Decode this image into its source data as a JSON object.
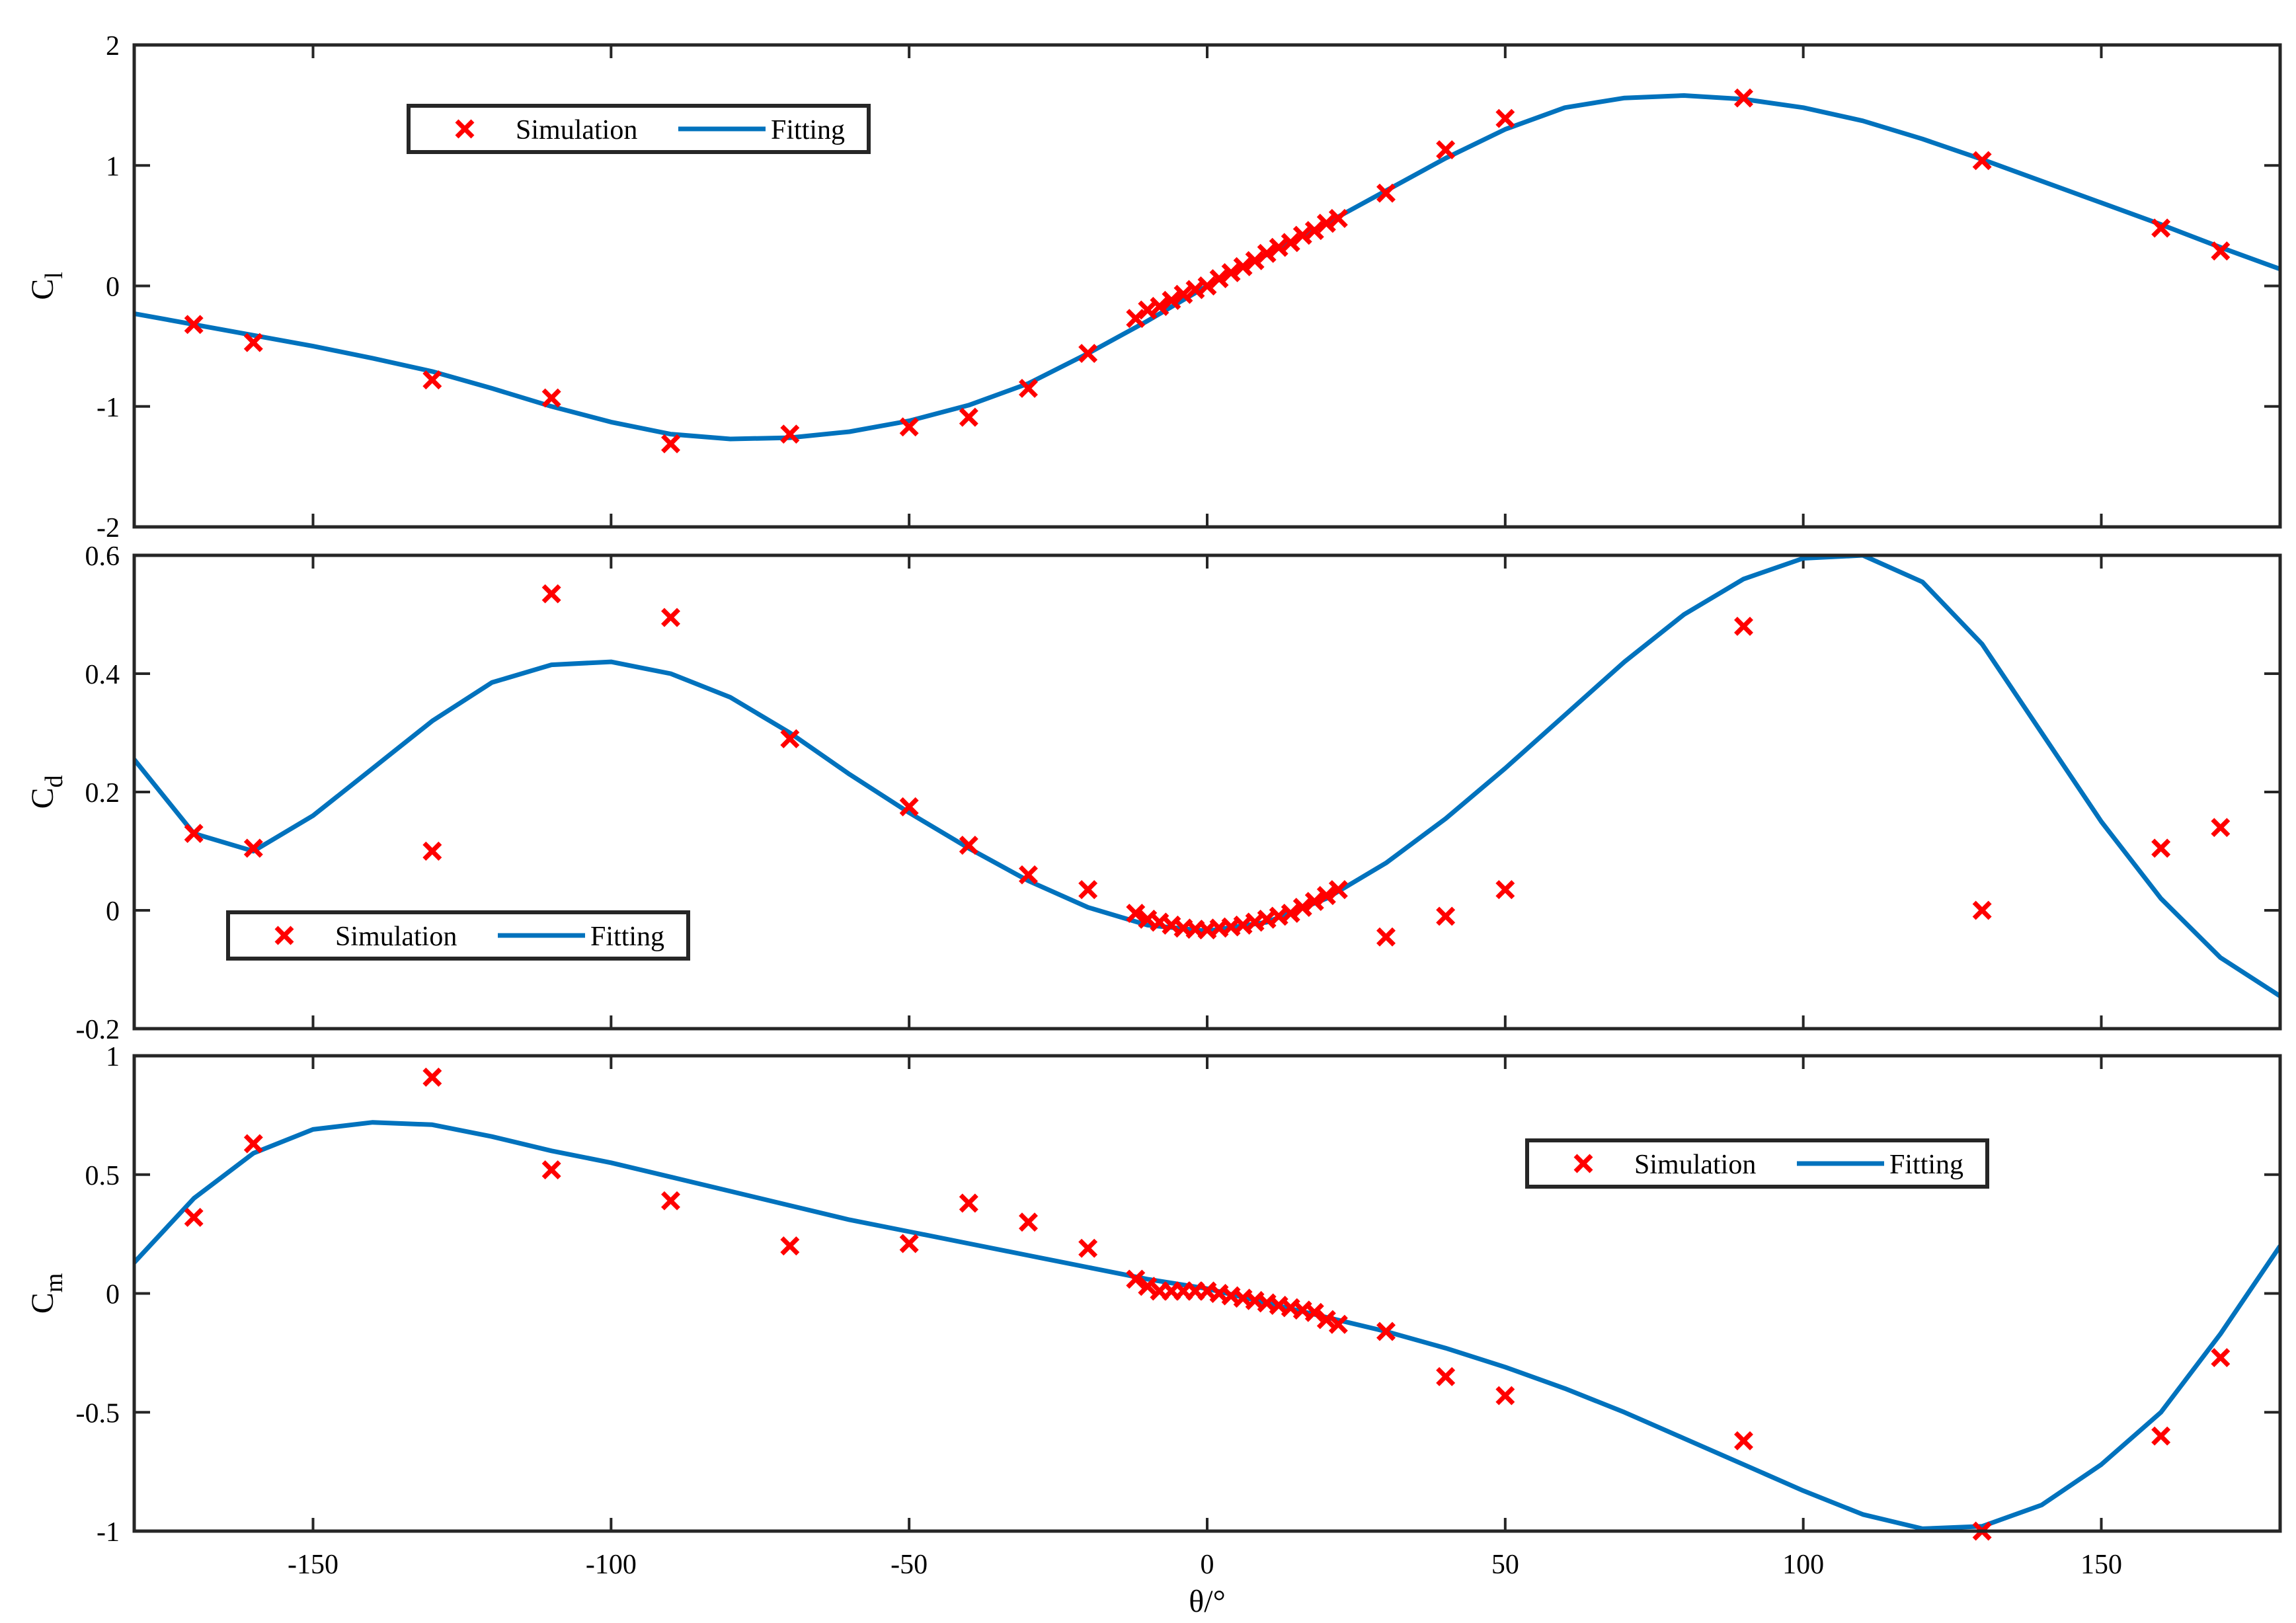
{
  "figure": {
    "xlabel": "θ/°",
    "marker_color": "#ff0000",
    "line_color": "#0072bd",
    "axis_color": "#262626"
  },
  "chart_data": [
    {
      "type": "line",
      "name": "lift",
      "ylabel_main": "C",
      "ylabel_sub": "l",
      "xlim": [
        -180,
        180
      ],
      "ylim": [
        -2,
        2
      ],
      "xticks": [
        -150,
        -100,
        -50,
        0,
        50,
        100,
        150
      ],
      "yticks": [
        -2,
        -1,
        0,
        1,
        2
      ],
      "legend": {
        "position": "top-left",
        "entries": [
          "Simulation",
          "Fitting"
        ]
      },
      "series": [
        {
          "name": "Simulation",
          "kind": "scatter",
          "x": [
            -170,
            -160,
            -130,
            -110,
            -90,
            -70,
            -50,
            -40,
            -30,
            -20,
            -12,
            -10,
            -8,
            -6,
            -4,
            -2,
            0,
            2,
            4,
            6,
            8,
            10,
            12,
            14,
            16,
            18,
            20,
            22,
            30,
            40,
            50,
            90,
            130,
            160,
            170
          ],
          "y": [
            -0.32,
            -0.47,
            -0.78,
            -0.93,
            -1.31,
            -1.23,
            -1.17,
            -1.09,
            -0.85,
            -0.56,
            -0.27,
            -0.2,
            -0.17,
            -0.12,
            -0.07,
            -0.03,
            0.0,
            0.06,
            0.11,
            0.16,
            0.21,
            0.27,
            0.32,
            0.36,
            0.42,
            0.46,
            0.52,
            0.56,
            0.77,
            1.13,
            1.39,
            1.56,
            1.04,
            0.48,
            0.29
          ]
        },
        {
          "name": "Fitting",
          "kind": "line",
          "x": [
            -180,
            -170,
            -160,
            -150,
            -140,
            -130,
            -120,
            -110,
            -100,
            -90,
            -80,
            -70,
            -60,
            -50,
            -40,
            -30,
            -20,
            -10,
            0,
            10,
            20,
            30,
            40,
            50,
            60,
            70,
            80,
            90,
            100,
            110,
            120,
            130,
            140,
            150,
            160,
            170,
            180
          ],
          "y": [
            -0.23,
            -0.32,
            -0.41,
            -0.5,
            -0.6,
            -0.71,
            -0.85,
            -1.0,
            -1.13,
            -1.23,
            -1.27,
            -1.26,
            -1.21,
            -1.12,
            -0.99,
            -0.81,
            -0.56,
            -0.29,
            0.0,
            0.26,
            0.52,
            0.79,
            1.06,
            1.3,
            1.48,
            1.56,
            1.58,
            1.55,
            1.48,
            1.37,
            1.22,
            1.05,
            0.87,
            0.69,
            0.51,
            0.32,
            0.14
          ]
        }
      ]
    },
    {
      "type": "line",
      "name": "drag",
      "ylabel_main": "C",
      "ylabel_sub": "d",
      "xlim": [
        -180,
        180
      ],
      "ylim": [
        -0.2,
        0.6
      ],
      "xticks": [
        -150,
        -100,
        -50,
        0,
        50,
        100,
        150
      ],
      "yticks": [
        -0.2,
        0,
        0.2,
        0.4,
        0.6
      ],
      "legend": {
        "position": "bottom-left",
        "entries": [
          "Simulation",
          "Fitting"
        ]
      },
      "series": [
        {
          "name": "Simulation",
          "kind": "scatter",
          "x": [
            -170,
            -160,
            -130,
            -110,
            -90,
            -70,
            -50,
            -40,
            -30,
            -20,
            -12,
            -10,
            -8,
            -6,
            -4,
            -2,
            0,
            2,
            4,
            6,
            8,
            10,
            12,
            14,
            16,
            18,
            20,
            22,
            30,
            40,
            50,
            90,
            130,
            160,
            170
          ],
          "y": [
            0.13,
            0.105,
            0.1,
            0.535,
            0.495,
            0.29,
            0.175,
            0.11,
            0.06,
            0.035,
            -0.005,
            -0.015,
            -0.02,
            -0.025,
            -0.03,
            -0.032,
            -0.033,
            -0.03,
            -0.028,
            -0.025,
            -0.02,
            -0.015,
            -0.01,
            -0.005,
            0.005,
            0.015,
            0.025,
            0.035,
            -0.045,
            -0.01,
            0.035,
            0.48,
            0.0,
            0.105,
            0.14
          ]
        },
        {
          "name": "Fitting",
          "kind": "line",
          "x": [
            -180,
            -170,
            -160,
            -150,
            -140,
            -130,
            -120,
            -110,
            -100,
            -90,
            -80,
            -70,
            -60,
            -50,
            -40,
            -30,
            -20,
            -10,
            0,
            10,
            20,
            30,
            40,
            50,
            60,
            70,
            80,
            90,
            100,
            110,
            120,
            130,
            140,
            150,
            160,
            170,
            180
          ],
          "y": [
            0.255,
            0.13,
            0.1,
            0.16,
            0.24,
            0.32,
            0.385,
            0.415,
            0.42,
            0.4,
            0.36,
            0.3,
            0.23,
            0.165,
            0.105,
            0.05,
            0.005,
            -0.025,
            -0.035,
            -0.02,
            0.02,
            0.08,
            0.155,
            0.24,
            0.33,
            0.42,
            0.5,
            0.56,
            0.595,
            0.6,
            0.555,
            0.45,
            0.3,
            0.15,
            0.02,
            -0.08,
            -0.145
          ]
        }
      ]
    },
    {
      "type": "line",
      "name": "moment",
      "ylabel_main": "C",
      "ylabel_sub": "m",
      "xlim": [
        -180,
        180
      ],
      "ylim": [
        -1,
        1
      ],
      "xticks": [
        -150,
        -100,
        -50,
        0,
        50,
        100,
        150
      ],
      "yticks": [
        -1,
        -0.5,
        0,
        0.5,
        1
      ],
      "legend": {
        "position": "top-right",
        "entries": [
          "Simulation",
          "Fitting"
        ]
      },
      "series": [
        {
          "name": "Simulation",
          "kind": "scatter",
          "x": [
            -170,
            -160,
            -130,
            -110,
            -90,
            -70,
            -50,
            -40,
            -30,
            -20,
            -12,
            -10,
            -8,
            -6,
            -4,
            -2,
            0,
            2,
            4,
            6,
            8,
            10,
            12,
            14,
            16,
            18,
            20,
            22,
            30,
            40,
            50,
            90,
            130,
            160,
            170
          ],
          "y": [
            0.32,
            0.63,
            0.91,
            0.52,
            0.39,
            0.2,
            0.21,
            0.38,
            0.3,
            0.19,
            0.06,
            0.03,
            0.01,
            0.01,
            0.01,
            0.01,
            0.01,
            0.0,
            -0.01,
            -0.02,
            -0.03,
            -0.04,
            -0.05,
            -0.06,
            -0.07,
            -0.08,
            -0.11,
            -0.13,
            -0.16,
            -0.35,
            -0.43,
            -0.62,
            -1.0,
            -0.6,
            -0.27
          ]
        },
        {
          "name": "Fitting",
          "kind": "line",
          "x": [
            -180,
            -170,
            -160,
            -150,
            -140,
            -130,
            -120,
            -110,
            -100,
            -90,
            -80,
            -70,
            -60,
            -50,
            -40,
            -30,
            -20,
            -10,
            0,
            10,
            20,
            30,
            40,
            50,
            60,
            70,
            80,
            90,
            100,
            110,
            120,
            130,
            140,
            150,
            160,
            170,
            180
          ],
          "y": [
            0.13,
            0.4,
            0.59,
            0.69,
            0.72,
            0.71,
            0.66,
            0.6,
            0.55,
            0.49,
            0.43,
            0.37,
            0.31,
            0.26,
            0.21,
            0.16,
            0.11,
            0.06,
            0.02,
            -0.04,
            -0.1,
            -0.16,
            -0.23,
            -0.31,
            -0.4,
            -0.5,
            -0.61,
            -0.72,
            -0.83,
            -0.93,
            -0.99,
            -0.98,
            -0.89,
            -0.72,
            -0.5,
            -0.17,
            0.2
          ]
        }
      ]
    }
  ]
}
